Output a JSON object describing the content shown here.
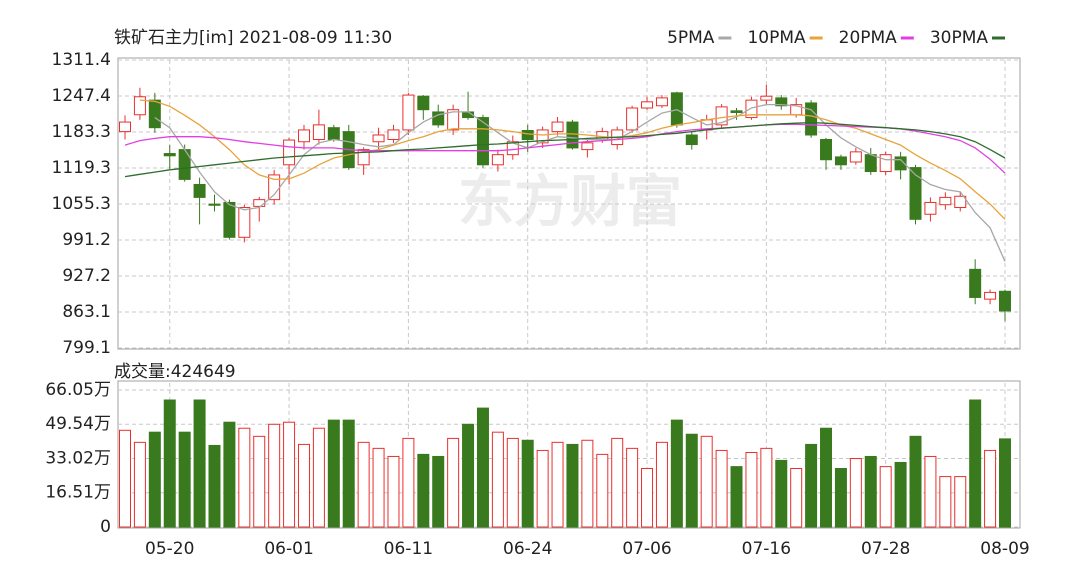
{
  "chart_data": [
    {
      "type": "candlestick",
      "title": "铁矿石主力[im] 2021-08-09 11:30",
      "watermark": "东方财富",
      "up_color": "#e8302e",
      "down_color": "#3a7a1e",
      "open": [
        1184,
        1214,
        1240,
        1145,
        1152,
        1090,
        1055,
        1058,
        996,
        1051,
        1063,
        1125,
        1166,
        1170,
        1191,
        1184,
        1125,
        1166,
        1170,
        1187,
        1247,
        1219,
        1187,
        1219,
        1209,
        1125,
        1143,
        1186,
        1164,
        1184,
        1201,
        1152,
        1170,
        1161,
        1187,
        1226,
        1230,
        1253,
        1178,
        1187,
        1196,
        1221,
        1209,
        1240,
        1244,
        1214,
        1235,
        1170,
        1139,
        1130,
        1143,
        1113,
        1139,
        1120,
        1037,
        1054,
        1049,
        939,
        886,
        900
      ],
      "high": [
        1213,
        1262,
        1253,
        1160,
        1161,
        1102,
        1072,
        1063,
        1054,
        1068,
        1116,
        1173,
        1196,
        1223,
        1196,
        1196,
        1156,
        1191,
        1196,
        1253,
        1249,
        1232,
        1232,
        1255,
        1214,
        1152,
        1177,
        1196,
        1193,
        1210,
        1205,
        1170,
        1191,
        1193,
        1230,
        1246,
        1249,
        1255,
        1184,
        1214,
        1233,
        1226,
        1246,
        1267,
        1249,
        1244,
        1240,
        1173,
        1143,
        1155,
        1155,
        1148,
        1148,
        1125,
        1067,
        1076,
        1077,
        957,
        903,
        903
      ],
      "low": [
        1170,
        1205,
        1182,
        1118,
        1095,
        1019,
        1042,
        992,
        987,
        1024,
        1054,
        1090,
        1152,
        1161,
        1166,
        1116,
        1107,
        1152,
        1164,
        1178,
        1205,
        1191,
        1178,
        1205,
        1120,
        1113,
        1134,
        1148,
        1155,
        1177,
        1152,
        1138,
        1164,
        1152,
        1182,
        1223,
        1226,
        1191,
        1152,
        1170,
        1191,
        1205,
        1205,
        1232,
        1223,
        1209,
        1173,
        1116,
        1116,
        1125,
        1107,
        1107,
        1099,
        1019,
        1024,
        1045,
        1042,
        877,
        877,
        847
      ],
      "close": [
        1201,
        1246,
        1191,
        1141,
        1099,
        1067,
        1053,
        996,
        1049,
        1063,
        1107,
        1169,
        1187,
        1196,
        1170,
        1120,
        1152,
        1178,
        1187,
        1249,
        1223,
        1196,
        1223,
        1209,
        1125,
        1143,
        1166,
        1170,
        1187,
        1201,
        1155,
        1164,
        1184,
        1187,
        1226,
        1237,
        1244,
        1196,
        1161,
        1205,
        1228,
        1218,
        1240,
        1247,
        1230,
        1232,
        1178,
        1134,
        1125,
        1148,
        1113,
        1143,
        1116,
        1028,
        1058,
        1067,
        1069,
        889,
        898,
        865
      ],
      "series": [
        {
          "name": "5PMA",
          "color": "#a8a8a8",
          "values": [
            null,
            null,
            1209,
            1191,
            1152,
            1112,
            1077,
            1054,
            1045,
            1049,
            1072,
            1107,
            1143,
            1164,
            1170,
            1166,
            1161,
            1157,
            1161,
            1182,
            1201,
            1214,
            1219,
            1219,
            1201,
            1182,
            1164,
            1155,
            1166,
            1175,
            1173,
            1170,
            1170,
            1170,
            1184,
            1201,
            1217,
            1223,
            1209,
            1196,
            1200,
            1210,
            1226,
            1232,
            1232,
            1230,
            1223,
            1196,
            1173,
            1157,
            1143,
            1134,
            1134,
            1107,
            1090,
            1081,
            1077,
            1040,
            1013,
            953
          ]
        },
        {
          "name": "10PMA",
          "color": "#e8a33a",
          "values": [
            null,
            1240,
            1238,
            1229,
            1213,
            1196,
            1175,
            1152,
            1125,
            1107,
            1099,
            1100,
            1110,
            1125,
            1137,
            1143,
            1148,
            1152,
            1160,
            1168,
            1175,
            1184,
            1189,
            1189,
            1189,
            1187,
            1184,
            1180,
            1178,
            1180,
            1180,
            1178,
            1175,
            1173,
            1177,
            1182,
            1190,
            1196,
            1200,
            1205,
            1209,
            1212,
            1214,
            1214,
            1214,
            1214,
            1212,
            1205,
            1196,
            1190,
            1180,
            1170,
            1160,
            1143,
            1128,
            1115,
            1100,
            1077,
            1055,
            1028
          ]
        },
        {
          "name": "20PMA",
          "color": "#e23fe2",
          "values": [
            1160,
            1168,
            1172,
            1175,
            1175,
            1175,
            1173,
            1170,
            1166,
            1163,
            1160,
            1157,
            1155,
            1155,
            1155,
            1152,
            1150,
            1150,
            1150,
            1150,
            1150,
            1150,
            1150,
            1150,
            1150,
            1150,
            1152,
            1155,
            1158,
            1161,
            1164,
            1166,
            1168,
            1170,
            1172,
            1175,
            1180,
            1184,
            1187,
            1189,
            1190,
            1192,
            1194,
            1196,
            1197,
            1197,
            1196,
            1195,
            1194,
            1193,
            1192,
            1191,
            1189,
            1185,
            1180,
            1175,
            1168,
            1155,
            1135,
            1110
          ]
        },
        {
          "name": "30PMA",
          "color": "#2d6e2d",
          "values": [
            1104,
            1108,
            1112,
            1116,
            1119,
            1122,
            1125,
            1128,
            1131,
            1134,
            1137,
            1139,
            1141,
            1143,
            1145,
            1146,
            1147,
            1148,
            1150,
            1152,
            1153,
            1155,
            1157,
            1159,
            1161,
            1162,
            1164,
            1166,
            1168,
            1169,
            1170,
            1172,
            1173,
            1174,
            1175,
            1177,
            1179,
            1181,
            1184,
            1187,
            1190,
            1192,
            1194,
            1196,
            1198,
            1199,
            1200,
            1199,
            1197,
            1195,
            1193,
            1191,
            1189,
            1187,
            1184,
            1180,
            1175,
            1166,
            1152,
            1137
          ]
        }
      ],
      "ylim": [
        799.1,
        1311.4
      ],
      "yticks": [
        1311.4,
        1247.4,
        1183.3,
        1119.3,
        1055.3,
        991.2,
        927.2,
        863.1,
        799.1
      ],
      "grid": true
    },
    {
      "type": "bar",
      "title": "成交量:424649",
      "categories": [
        null,
        null,
        null,
        "05-20",
        null,
        null,
        null,
        null,
        null,
        null,
        null,
        "06-01",
        null,
        null,
        null,
        null,
        null,
        null,
        null,
        "06-11",
        null,
        null,
        null,
        null,
        null,
        null,
        null,
        "06-24",
        null,
        null,
        null,
        null,
        null,
        null,
        null,
        "07-06",
        null,
        null,
        null,
        null,
        null,
        null,
        null,
        "07-16",
        null,
        null,
        null,
        null,
        null,
        null,
        null,
        "07-28",
        null,
        null,
        null,
        null,
        null,
        null,
        null,
        "08-09"
      ],
      "values": [
        46.6,
        40.8,
        45.7,
        61.2,
        45.7,
        61.2,
        39.3,
        50.5,
        47.6,
        43.7,
        49.5,
        50.5,
        39.8,
        47.6,
        51.5,
        51.5,
        40.8,
        37.9,
        34.0,
        42.7,
        35.0,
        34.0,
        42.7,
        49.5,
        57.3,
        45.7,
        42.7,
        41.8,
        36.9,
        40.8,
        39.8,
        41.8,
        35.0,
        42.7,
        37.9,
        28.2,
        40.8,
        51.5,
        44.7,
        43.7,
        36.9,
        29.1,
        35.9,
        37.9,
        32.1,
        28.2,
        39.8,
        47.6,
        28.2,
        33.0,
        34.0,
        29.1,
        31.1,
        43.7,
        34.0,
        24.3,
        24.3,
        61.2,
        36.9,
        42.4649
      ],
      "ylim": [
        0,
        69.4
      ],
      "yticks": [
        {
          "value": 66.05,
          "label": "66.05万"
        },
        {
          "value": 49.54,
          "label": "49.54万"
        },
        {
          "value": 33.02,
          "label": "33.02万"
        },
        {
          "value": 16.51,
          "label": "16.51万"
        },
        0
      ],
      "grid": true
    }
  ]
}
